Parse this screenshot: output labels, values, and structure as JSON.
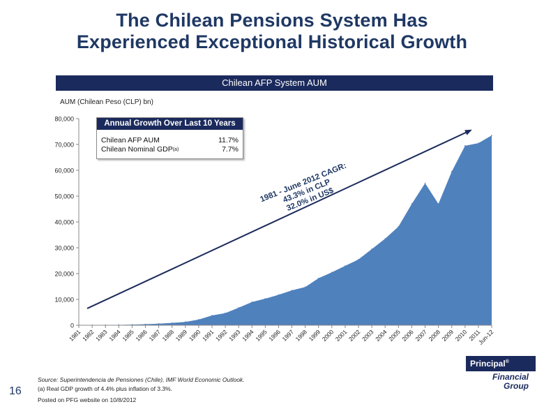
{
  "title": {
    "line1": "The Chilean Pensions System Has",
    "line2": "Experienced Exceptional Historical Growth"
  },
  "banner": "Chilean AFP System AUM",
  "colors": {
    "navy": "#1b2a5c",
    "area": "#4f81bd",
    "arrow": "#1b2a5c"
  },
  "growth_box": {
    "title": "Annual Growth Over Last 10 Years",
    "rows": [
      {
        "label": "Chilean AFP AUM",
        "sup": "",
        "value": "11.7%"
      },
      {
        "label": "Chilean Nominal GDP",
        "sup": "(a)",
        "value": "7.7%"
      }
    ]
  },
  "cagr": {
    "line1": "1981 - June 2012 CAGR:",
    "line2": "43.3% in CLP",
    "line3": "32.0% in US$"
  },
  "chart_data": {
    "type": "area",
    "ylabel": "AUM (Chilean Peso (CLP) bn)",
    "ylim": [
      0,
      80000
    ],
    "yticks": [
      "0",
      "10,000",
      "20,000",
      "30,000",
      "40,000",
      "50,000",
      "60,000",
      "70,000",
      "80,000"
    ],
    "categories": [
      "1981",
      "1982",
      "1983",
      "1984",
      "1985",
      "1986",
      "1987",
      "1988",
      "1989",
      "1990",
      "1991",
      "1992",
      "1993",
      "1994",
      "1995",
      "1996",
      "1997",
      "1998",
      "1999",
      "2000",
      "2001",
      "2002",
      "2003",
      "2004",
      "2005",
      "2006",
      "2007",
      "2008",
      "2009",
      "2010",
      "2011",
      "Jun-12"
    ],
    "values": [
      0,
      50,
      100,
      150,
      250,
      400,
      600,
      900,
      1300,
      2200,
      3800,
      4700,
      6800,
      9000,
      10300,
      11800,
      13500,
      14800,
      18200,
      20500,
      23000,
      25500,
      29500,
      33500,
      38200,
      47000,
      55000,
      47000,
      59500,
      69500,
      70500,
      73500
    ],
    "grid": false,
    "arrow": {
      "from": {
        "x": "1981",
        "y": 6500
      },
      "to": {
        "x": "Jun-12",
        "y": 75500
      }
    }
  },
  "footer": {
    "page_number": "16",
    "source": "Source: Superintendencia de Pensiones (Chile), IMF World Economic Outlook.",
    "footnote": "(a)    Real GDP growth of 4.4% plus inflation of 3.3%.",
    "posted": "Posted on PFG website on 10/8/2012"
  },
  "logo": {
    "top": "Principal",
    "mark": "®",
    "bottom1": "Financial",
    "bottom2": "Group"
  }
}
